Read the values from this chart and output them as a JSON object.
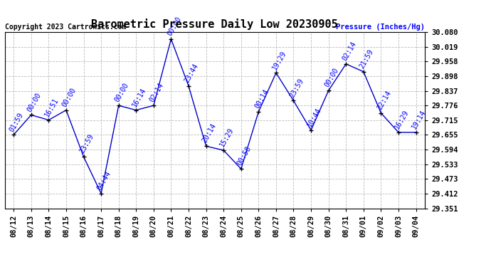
{
  "title": "Barometric Pressure Daily Low 20230905",
  "ylabel": "Pressure (Inches/Hg)",
  "copyright": "Copyright 2023 Cartronics.com",
  "line_color": "#0000cc",
  "marker_color": "#000000",
  "background_color": "#ffffff",
  "grid_color": "#bbbbbb",
  "ylim": [
    29.351,
    30.08
  ],
  "yticks": [
    29.351,
    29.412,
    29.473,
    29.533,
    29.594,
    29.655,
    29.715,
    29.776,
    29.837,
    29.898,
    29.958,
    30.019,
    30.08
  ],
  "x_labels": [
    "08/12",
    "08/13",
    "08/14",
    "08/15",
    "08/16",
    "08/17",
    "08/18",
    "08/19",
    "08/20",
    "08/21",
    "08/22",
    "08/23",
    "08/24",
    "08/25",
    "08/26",
    "08/27",
    "08/28",
    "08/29",
    "08/30",
    "08/31",
    "09/01",
    "09/02",
    "09/03",
    "09/04"
  ],
  "x_values": [
    0,
    1,
    2,
    3,
    4,
    5,
    6,
    7,
    8,
    9,
    10,
    11,
    12,
    13,
    14,
    15,
    16,
    17,
    18,
    19,
    20,
    21,
    22,
    23
  ],
  "y_values": [
    29.655,
    29.737,
    29.716,
    29.757,
    29.564,
    29.412,
    29.776,
    29.757,
    29.776,
    30.051,
    29.857,
    29.608,
    29.591,
    29.514,
    29.75,
    29.911,
    29.796,
    29.674,
    29.838,
    29.948,
    29.916,
    29.745,
    29.665,
    29.665
  ],
  "point_labels": [
    "01:59",
    "00:00",
    "16:51",
    "00:00",
    "23:59",
    "04:44",
    "00:00",
    "16:14",
    "02:14",
    "00:00",
    "23:44",
    "20:14",
    "15:29",
    "00:58",
    "00:14",
    "19:29",
    "23:59",
    "10:44",
    "00:00",
    "02:14",
    "21:59",
    "22:14",
    "16:29",
    "19:14"
  ],
  "label_color": "#0000ff",
  "title_fontsize": 11,
  "tick_fontsize": 7.5,
  "label_fontsize": 7,
  "copyright_fontsize": 7
}
